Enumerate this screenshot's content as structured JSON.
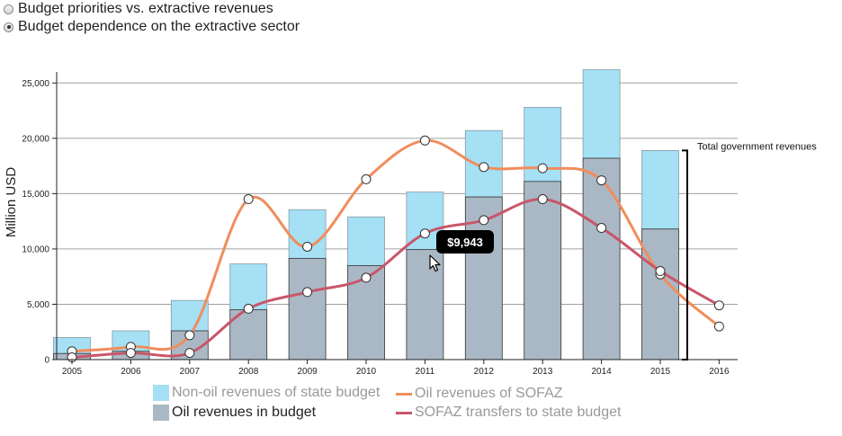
{
  "controls": {
    "options": [
      {
        "label": "Budget priorities vs. extractive revenues",
        "checked": false
      },
      {
        "label": "Budget dependence on the extractive sector",
        "checked": true
      }
    ]
  },
  "tooltip": {
    "value": "$9,943"
  },
  "chart_data": {
    "type": "bar",
    "ylabel": "Million USD",
    "ylim": [
      0,
      26000
    ],
    "yticks": [
      0,
      5000,
      10000,
      15000,
      20000,
      25000
    ],
    "ytick_labels": [
      "0",
      "5,000",
      "10,000",
      "15,000",
      "20,000",
      "25,000"
    ],
    "grid": true,
    "categories": [
      "2005",
      "2006",
      "2007",
      "2008",
      "2009",
      "2010",
      "2011",
      "2012",
      "2013",
      "2014",
      "2015",
      "2016"
    ],
    "series": [
      {
        "name": "Oil revenues in budget",
        "kind": "stacked-bar",
        "color": "#a9b8c4",
        "values": [
          550,
          750,
          2600,
          4500,
          9150,
          8500,
          9943,
          14700,
          16100,
          18200,
          11800,
          null
        ]
      },
      {
        "name": "Non-oil revenues of state budget",
        "kind": "stacked-bar",
        "color": "#a5e0f5",
        "values": [
          1450,
          1850,
          2750,
          4150,
          4400,
          4400,
          5200,
          6000,
          6700,
          8000,
          7100,
          null
        ]
      },
      {
        "name": "Oil revenues of SOFAZ",
        "kind": "line",
        "color": "#f08d5c",
        "values": [
          750,
          1150,
          2200,
          14500,
          10200,
          16300,
          19800,
          17400,
          17300,
          16200,
          7700,
          3000
        ]
      },
      {
        "name": "SOFAZ transfers to state budget",
        "kind": "line",
        "color": "#c9566a",
        "values": [
          200,
          600,
          600,
          4600,
          6100,
          7400,
          11400,
          12600,
          14500,
          11900,
          8000,
          4900
        ]
      }
    ],
    "annotation": {
      "text": "Total government revenues",
      "target_category": "2015",
      "range": [
        0,
        18900
      ]
    },
    "legend_position": "bottom"
  }
}
